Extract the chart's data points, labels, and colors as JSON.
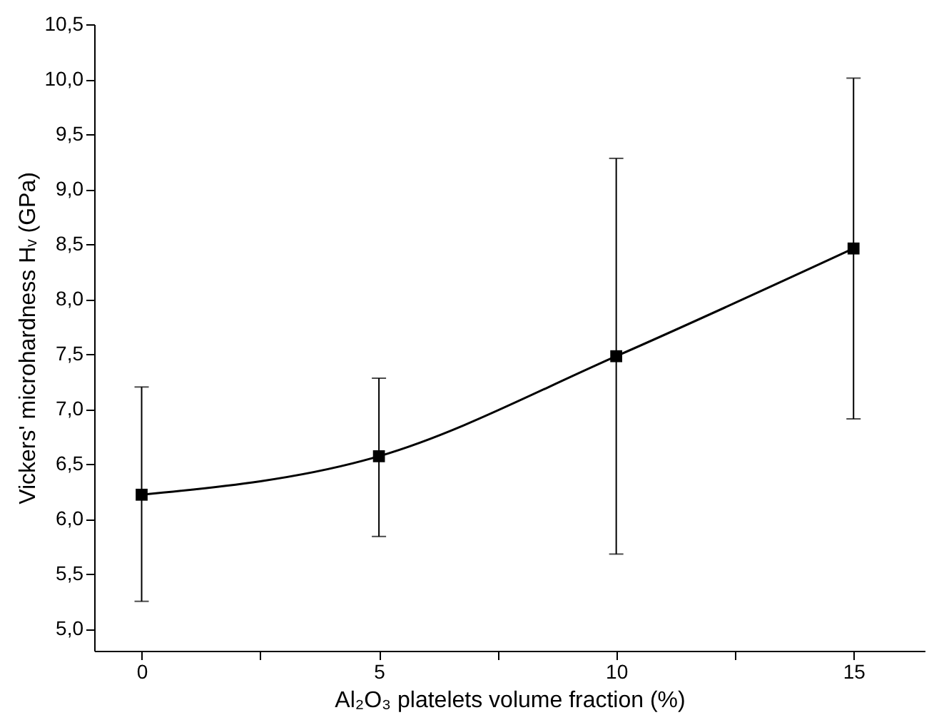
{
  "chart_data": {
    "type": "line",
    "xlabel": "Al₂O₃ platelets volume fraction (%)",
    "ylabel": "Vickers' microhardness Hᵥ (GPa)",
    "x": [
      0,
      5,
      10,
      15
    ],
    "series": [
      {
        "color": "#000000",
        "values": [
          6.22,
          6.57,
          7.48,
          8.46
        ],
        "errors": [
          [
            5.25,
            7.2
          ],
          [
            5.84,
            7.28
          ],
          [
            5.68,
            9.28
          ],
          [
            6.91,
            10.01
          ]
        ]
      }
    ],
    "xlim": [
      -1,
      16.5
    ],
    "ylim": [
      4.8,
      10.5
    ],
    "xticks": [
      0,
      {
        "value": 2.5,
        "label": null
      },
      5,
      {
        "value": 7.5,
        "label": null
      },
      10,
      {
        "value": 12.5,
        "label": null
      },
      15
    ],
    "yticks": [
      {
        "value": 5.0,
        "label": "5,0"
      },
      {
        "value": 5.5,
        "label": "5,5"
      },
      {
        "value": 6.0,
        "label": "6,0"
      },
      {
        "value": 6.5,
        "label": "6,5"
      },
      {
        "value": 7.0,
        "label": "7,0"
      },
      {
        "value": 7.5,
        "label": "7,5"
      },
      {
        "value": 8.0,
        "label": "8,0"
      },
      {
        "value": 8.5,
        "label": "8,5"
      },
      {
        "value": 9.0,
        "label": "9,0"
      },
      {
        "value": 9.5,
        "label": "9,5"
      },
      {
        "value": 10.0,
        "label": "10,0"
      },
      {
        "value": 10.5,
        "label": "10,5"
      }
    ],
    "grid": false,
    "marker": "square",
    "line_style": "solid"
  }
}
